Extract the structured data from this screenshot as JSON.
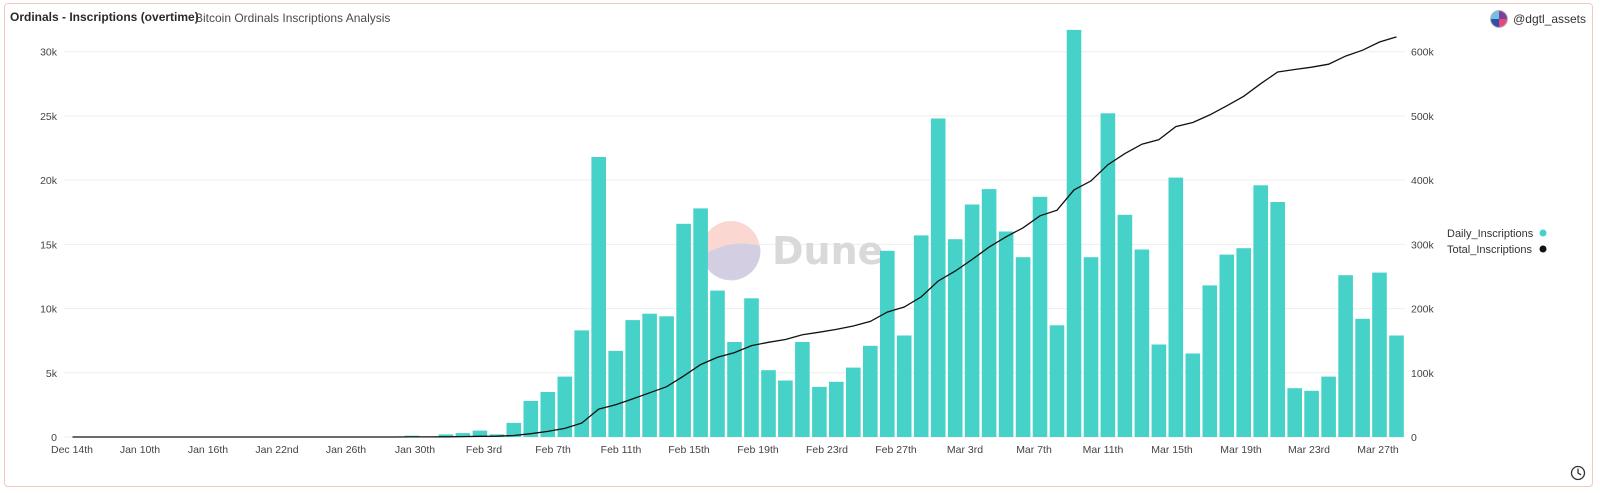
{
  "header": {
    "title": "Ordinals - Inscriptions (overtime)",
    "subtitle": "Bitcoin Ordinals Inscriptions Analysis",
    "author": "@dgtl_assets"
  },
  "watermark": "Dune",
  "icons": {
    "avatar": "avatar-icon",
    "clock": "clock-icon"
  },
  "colors": {
    "bar": "#46D2C8",
    "line": "#111111",
    "grid": "#eeeeee"
  },
  "chart_data": {
    "type": "bar",
    "x_tick_labels": [
      "Dec 14th",
      "Jan 10th",
      "Jan 16th",
      "Jan 22nd",
      "Jan 26th",
      "Jan 30th",
      "Feb 3rd",
      "Feb 7th",
      "Feb 11th",
      "Feb 15th",
      "Feb 19th",
      "Feb 23rd",
      "Feb 27th",
      "Mar 3rd",
      "Mar 7th",
      "Mar 11th",
      "Mar 15th",
      "Mar 19th",
      "Mar 23rd",
      "Mar 27th"
    ],
    "y_left": {
      "ticks": [
        0,
        5000,
        10000,
        15000,
        20000,
        25000,
        30000
      ],
      "tick_labels": [
        "0",
        "5k",
        "10k",
        "15k",
        "20k",
        "25k",
        "30k"
      ],
      "ylim": [
        0,
        32000
      ]
    },
    "y_right": {
      "ticks": [
        0,
        100000,
        200000,
        300000,
        400000,
        500000,
        600000
      ],
      "tick_labels": [
        "0",
        "100k",
        "200k",
        "300k",
        "400k",
        "500k",
        "600k"
      ],
      "ylim": [
        0,
        640000
      ]
    },
    "legend": {
      "placement": "right",
      "entries": [
        "Daily_Inscriptions",
        "Total_Inscriptions"
      ]
    },
    "grid": true,
    "series": [
      {
        "name": "Daily_Inscriptions",
        "type": "bar",
        "axis": "left",
        "values": [
          0,
          0,
          0,
          0,
          0,
          0,
          0,
          0,
          0,
          0,
          0,
          0,
          0,
          0,
          0,
          0,
          0,
          0,
          0,
          0,
          100,
          0,
          200,
          300,
          500,
          200,
          1100,
          2800,
          3500,
          4700,
          8300,
          21800,
          6700,
          9100,
          9600,
          9400,
          16600,
          17800,
          11400,
          7400,
          10800,
          5200,
          4400,
          7400,
          3900,
          4300,
          5400,
          7100,
          14500,
          7900,
          15700,
          24800,
          15400,
          18100,
          19300,
          16000,
          14000,
          18700,
          8700,
          31700,
          14000,
          25200,
          17300,
          14600,
          7200,
          20200,
          6500,
          11800,
          14200,
          14700,
          19600,
          18300,
          3800,
          3600,
          4700,
          12600,
          9200,
          12800,
          7900
        ]
      },
      {
        "name": "Total_Inscriptions",
        "type": "line",
        "axis": "right",
        "values": [
          0,
          0,
          0,
          0,
          0,
          0,
          0,
          0,
          0,
          0,
          0,
          0,
          0,
          0,
          0,
          0,
          0,
          0,
          0,
          0,
          100,
          100,
          300,
          600,
          1100,
          1300,
          2400,
          5200,
          8700,
          13400,
          21700,
          43500,
          50200,
          59300,
          68900,
          78300,
          94900,
          112700,
          124100,
          131500,
          142300,
          147500,
          151900,
          159300,
          163200,
          167500,
          172900,
          180000,
          194500,
          202400,
          218100,
          242900,
          258300,
          276400,
          295700,
          311700,
          325700,
          344400,
          353100,
          384800,
          398800,
          424000,
          441300,
          455900,
          463100,
          483300,
          489800,
          501600,
          515800,
          530500,
          550100,
          568400,
          572200,
          575800,
          580500,
          593100,
          602300,
          615100,
          623000
        ]
      }
    ]
  }
}
